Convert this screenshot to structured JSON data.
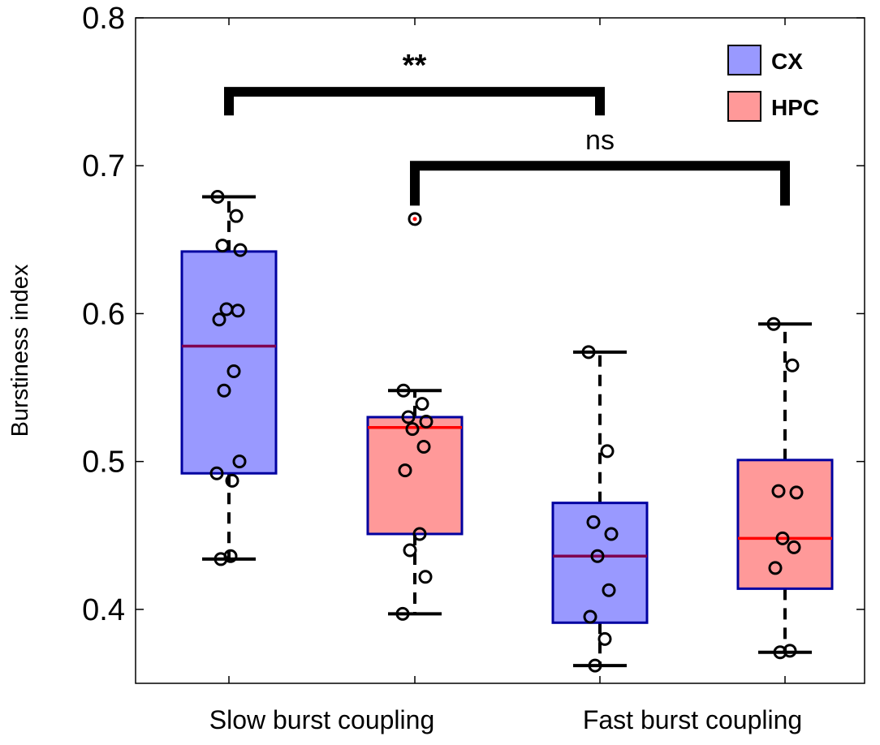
{
  "chart_data": {
    "type": "box",
    "xlabel": "",
    "ylabel": "Burstiness index",
    "ylim": [
      0.35,
      0.8
    ],
    "yticks": [
      0.4,
      0.5,
      0.6,
      0.7,
      0.8
    ],
    "ytick_labels": [
      "0.4",
      "0.5",
      "0.6",
      "0.7",
      "0.8"
    ],
    "grid": false,
    "legend_position": "top-right",
    "categories": [
      "Slow burst coupling",
      "Fast burst coupling"
    ],
    "series": [
      {
        "name": "CX",
        "color": "#9999ff",
        "edge_color": "#0000a0",
        "median_color": "#7f0050"
      },
      {
        "name": "HPC",
        "color": "#ff9999",
        "edge_color": "#0000a0",
        "median_color": "#ff0000"
      }
    ],
    "boxes": [
      {
        "category": "Slow burst coupling",
        "series": "CX",
        "q1": 0.492,
        "median": 0.578,
        "q3": 0.642,
        "whisker_low": 0.434,
        "whisker_high": 0.679,
        "points": [
          0.679,
          0.666,
          0.646,
          0.643,
          0.603,
          0.602,
          0.596,
          0.561,
          0.548,
          0.5,
          0.492,
          0.487,
          0.436,
          0.434
        ],
        "outliers": []
      },
      {
        "category": "Slow burst coupling",
        "series": "HPC",
        "q1": 0.451,
        "median": 0.523,
        "q3": 0.53,
        "whisker_low": 0.397,
        "whisker_high": 0.548,
        "points": [
          0.548,
          0.539,
          0.53,
          0.527,
          0.522,
          0.51,
          0.494,
          0.451,
          0.44,
          0.422,
          0.397
        ],
        "outliers": [
          0.664
        ]
      },
      {
        "category": "Fast burst coupling",
        "series": "CX",
        "q1": 0.391,
        "median": 0.436,
        "q3": 0.472,
        "whisker_low": 0.362,
        "whisker_high": 0.574,
        "points": [
          0.574,
          0.507,
          0.459,
          0.451,
          0.436,
          0.413,
          0.395,
          0.38,
          0.362
        ],
        "outliers": []
      },
      {
        "category": "Fast burst coupling",
        "series": "HPC",
        "q1": 0.414,
        "median": 0.448,
        "q3": 0.501,
        "whisker_low": 0.371,
        "whisker_high": 0.593,
        "points": [
          0.593,
          0.565,
          0.48,
          0.479,
          0.448,
          0.442,
          0.428,
          0.372,
          0.371
        ],
        "outliers": []
      }
    ],
    "annotations": [
      {
        "label": "**",
        "from": "Slow burst coupling / CX",
        "to": "Fast burst coupling / CX",
        "level": 0.75,
        "tick_bottom": 0.734
      },
      {
        "label": "ns",
        "from": "Slow burst coupling / HPC",
        "to": "Fast burst coupling / HPC",
        "level": 0.7,
        "tick_bottom": 0.673
      }
    ]
  }
}
